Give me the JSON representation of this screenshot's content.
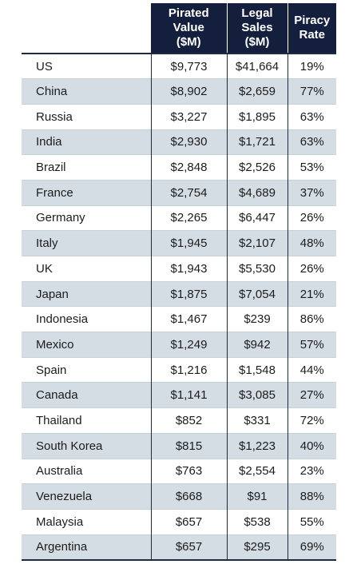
{
  "headers": {
    "pirated": [
      "Pirated",
      "Value",
      "($M)"
    ],
    "legal": [
      "Legal",
      "Sales",
      "($M)"
    ],
    "rate": [
      "Piracy",
      "Rate"
    ]
  },
  "rows": [
    {
      "country": "US",
      "pirated": "$9,773",
      "legal": "$41,664",
      "rate": "19%"
    },
    {
      "country": "China",
      "pirated": "$8,902",
      "legal": "$2,659",
      "rate": "77%"
    },
    {
      "country": "Russia",
      "pirated": "$3,227",
      "legal": "$1,895",
      "rate": "63%"
    },
    {
      "country": "India",
      "pirated": "$2,930",
      "legal": "$1,721",
      "rate": "63%"
    },
    {
      "country": "Brazil",
      "pirated": "$2,848",
      "legal": "$2,526",
      "rate": "53%"
    },
    {
      "country": "France",
      "pirated": "$2,754",
      "legal": "$4,689",
      "rate": "37%"
    },
    {
      "country": "Germany",
      "pirated": "$2,265",
      "legal": "$6,447",
      "rate": "26%"
    },
    {
      "country": "Italy",
      "pirated": "$1,945",
      "legal": "$2,107",
      "rate": "48%"
    },
    {
      "country": "UK",
      "pirated": "$1,943",
      "legal": "$5,530",
      "rate": "26%"
    },
    {
      "country": "Japan",
      "pirated": "$1,875",
      "legal": "$7,054",
      "rate": "21%"
    },
    {
      "country": "Indonesia",
      "pirated": "$1,467",
      "legal": "$239",
      "rate": "86%"
    },
    {
      "country": "Mexico",
      "pirated": "$1,249",
      "legal": "$942",
      "rate": "57%"
    },
    {
      "country": "Spain",
      "pirated": "$1,216",
      "legal": "$1,548",
      "rate": "44%"
    },
    {
      "country": "Canada",
      "pirated": "$1,141",
      "legal": "$3,085",
      "rate": "27%"
    },
    {
      "country": "Thailand",
      "pirated": "$852",
      "legal": "$331",
      "rate": "72%"
    },
    {
      "country": "South Korea",
      "pirated": "$815",
      "legal": "$1,223",
      "rate": "40%"
    },
    {
      "country": "Australia",
      "pirated": "$763",
      "legal": "$2,554",
      "rate": "23%"
    },
    {
      "country": "Venezuela",
      "pirated": "$668",
      "legal": "$91",
      "rate": "88%"
    },
    {
      "country": "Malaysia",
      "pirated": "$657",
      "legal": "$538",
      "rate": "55%"
    },
    {
      "country": "Argentina",
      "pirated": "$657",
      "legal": "$295",
      "rate": "69%"
    }
  ]
}
